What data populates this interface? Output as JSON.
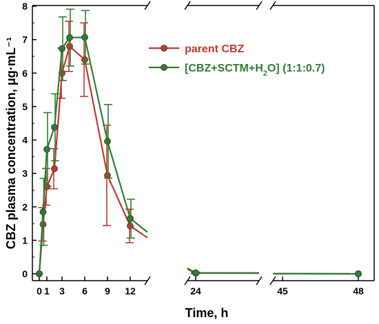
{
  "chart_data": {
    "type": "line",
    "xlabel": "Time, h",
    "ylabel": "CBZ plasma concentration, μg·mL⁻¹",
    "x_ticks": [
      "0",
      "1",
      "3",
      "6",
      "9",
      "12",
      "24",
      "45",
      "48"
    ],
    "y_ticks": [
      "0",
      "1",
      "2",
      "3",
      "4",
      "5",
      "6",
      "7",
      "8"
    ],
    "ylim": [
      0,
      8
    ],
    "x_axis_breaks": [
      [
        15,
        23
      ],
      [
        27,
        44
      ]
    ],
    "legend_position": "top-right",
    "series": [
      {
        "name": "parent CBZ",
        "color": "#c0392b",
        "x": [
          0,
          0.5,
          1,
          2,
          3,
          4,
          6,
          9,
          12,
          24,
          48
        ],
        "y": [
          0,
          1.48,
          2.6,
          3.14,
          6.0,
          6.8,
          6.4,
          2.94,
          1.43,
          0.02,
          0.0
        ],
        "err": [
          0,
          0.5,
          0.55,
          0.6,
          0.75,
          0.75,
          1.1,
          1.5,
          0.5,
          0.02,
          0.0
        ]
      },
      {
        "name": "[CBZ+SCTM+H₂O] (1:1:0.7)",
        "name_parts": [
          "[CBZ+SCTM+H",
          "2",
          "O] (1:1:0.7)"
        ],
        "color": "#2e7d32",
        "x": [
          0,
          0.5,
          1,
          2,
          3,
          4,
          6,
          9,
          12,
          24,
          48
        ],
        "y": [
          0,
          1.85,
          3.72,
          4.38,
          6.73,
          7.06,
          7.07,
          3.96,
          1.65,
          0.03,
          0.0
        ],
        "err": [
          0,
          1.0,
          1.1,
          1.0,
          0.95,
          0.85,
          0.8,
          1.1,
          0.58,
          0.02,
          0.0
        ]
      }
    ]
  }
}
